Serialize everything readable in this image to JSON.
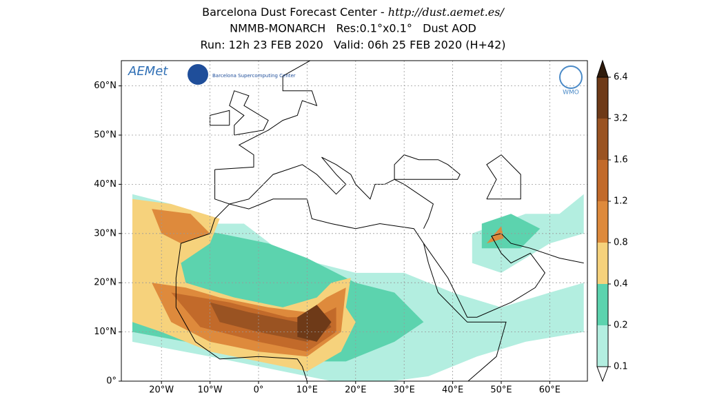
{
  "header": {
    "title": "Barcelona Dust Forecast Center - ",
    "url": "http://dust.aemet.es/",
    "subtitle": "NMMB-MONARCH   Res:0.1°x0.1°   Dust AOD",
    "run_info": "Run: 12h 23 FEB 2020   Valid: 06h 25 FEB 2020 (H+42)"
  },
  "map": {
    "lat_ticks": [
      {
        "value": 60,
        "label": "60°N"
      },
      {
        "value": 50,
        "label": "50°N"
      },
      {
        "value": 40,
        "label": "40°N"
      },
      {
        "value": 30,
        "label": "30°N"
      },
      {
        "value": 20,
        "label": "20°N"
      },
      {
        "value": 10,
        "label": "10°N"
      },
      {
        "value": 0,
        "label": "0°"
      }
    ],
    "lon_ticks": [
      {
        "value": -20,
        "label": "20°W"
      },
      {
        "value": -10,
        "label": "10°W"
      },
      {
        "value": 0,
        "label": "0°"
      },
      {
        "value": 10,
        "label": "10°E"
      },
      {
        "value": 20,
        "label": "20°E"
      },
      {
        "value": 30,
        "label": "30°E"
      },
      {
        "value": 40,
        "label": "40°E"
      },
      {
        "value": 50,
        "label": "50°E"
      },
      {
        "value": 60,
        "label": "60°E"
      }
    ]
  },
  "colorbar": {
    "levels": [
      0.1,
      0.2,
      0.4,
      0.8,
      1.2,
      1.6,
      3.2,
      6.4
    ],
    "colors": [
      "#b3eee0",
      "#5cd3ae",
      "#f6d27c",
      "#de8a3c",
      "#c26a2a",
      "#9a5322",
      "#6e3a18",
      "#2f1b0c"
    ]
  },
  "logos": {
    "aemet": "AEMet",
    "bsc": "Barcelona Supercomputing Center",
    "wmo": "WMO"
  }
}
